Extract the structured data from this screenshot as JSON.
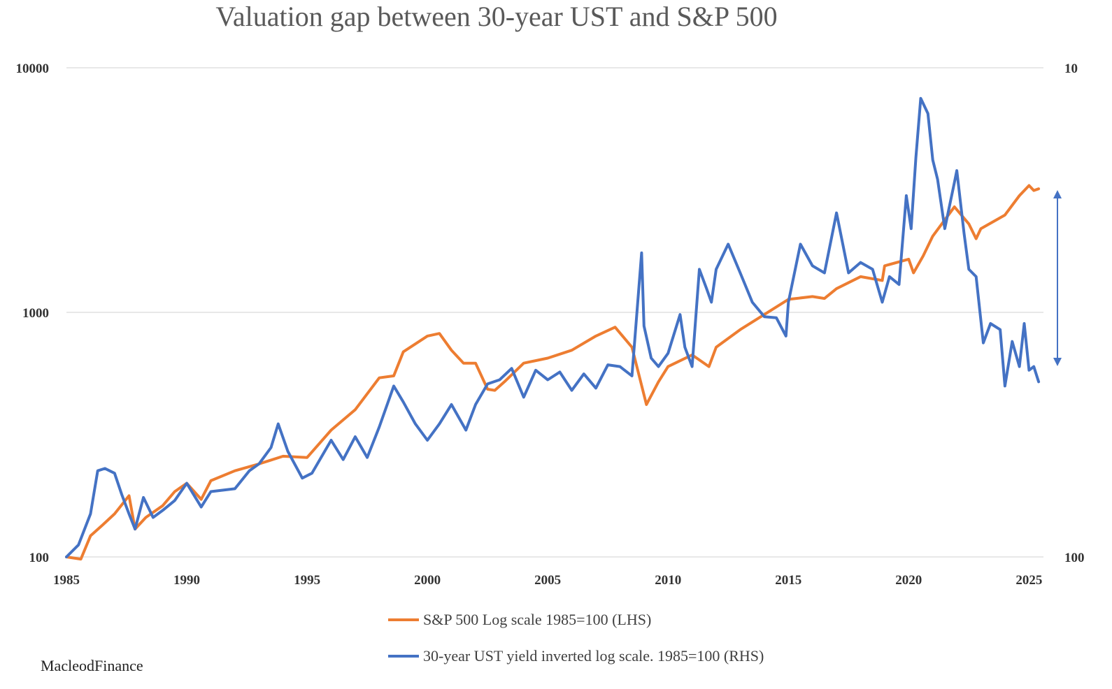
{
  "chart_data": {
    "type": "line",
    "title": "Valuation gap between 30-year UST and S&P 500",
    "x_ticks": [
      "1985",
      "1990",
      "1995",
      "2000",
      "2005",
      "2010",
      "2015",
      "2020",
      "2025"
    ],
    "xlim": [
      1985,
      2025.6
    ],
    "left_axis": {
      "scale": "log",
      "ylim": [
        100,
        10000
      ],
      "ticks": [
        "100",
        "1000",
        "10000"
      ]
    },
    "right_axis": {
      "scale": "log-inverted",
      "ylim": [
        100,
        10
      ],
      "ticks": [
        "100",
        "10"
      ]
    },
    "grid": "horizontal",
    "legend_position": "bottom",
    "series": [
      {
        "name": "S&P 500 Log scale 1985=100 (LHS)",
        "color": "#ED7D31",
        "axis": "left",
        "x": [
          1985,
          1985.6,
          1986,
          1986.5,
          1987,
          1987.6,
          1987.85,
          1988.3,
          1989,
          1989.5,
          1990,
          1990.6,
          1991,
          1992,
          1993,
          1994,
          1995,
          1996,
          1997,
          1998,
          1998.6,
          1999,
          2000,
          2000.5,
          2001,
          2001.5,
          2002,
          2002.5,
          2002.8,
          2003.2,
          2004,
          2005,
          2006,
          2007,
          2007.8,
          2008.5,
          2009.1,
          2009.6,
          2010,
          2011,
          2011.7,
          2012,
          2013,
          2014,
          2015,
          2016,
          2016.5,
          2017,
          2018,
          2018.9,
          2019,
          2020,
          2020.2,
          2020.6,
          2021,
          2021.9,
          2022.5,
          2022.8,
          2023,
          2024,
          2024.6,
          2025,
          2025.2,
          2025.4
        ],
        "values": [
          100,
          98,
          122,
          135,
          150,
          178,
          130,
          145,
          162,
          185,
          200,
          172,
          205,
          225,
          240,
          258,
          255,
          330,
          400,
          540,
          550,
          690,
          800,
          820,
          700,
          620,
          620,
          485,
          480,
          520,
          620,
          650,
          700,
          800,
          870,
          720,
          420,
          520,
          600,
          670,
          600,
          720,
          850,
          980,
          1130,
          1160,
          1140,
          1250,
          1400,
          1350,
          1550,
          1650,
          1450,
          1700,
          2050,
          2700,
          2300,
          2000,
          2200,
          2500,
          3000,
          3300,
          3150,
          3200
        ]
      },
      {
        "name": "30-year UST yield inverted log scale. 1985=100 (RHS)",
        "color": "#4472C4",
        "axis": "right",
        "x": [
          1985,
          1985.5,
          1986,
          1986.3,
          1986.6,
          1987,
          1987.3,
          1987.6,
          1987.85,
          1988.2,
          1988.6,
          1989,
          1989.5,
          1990,
          1990.6,
          1991,
          1992,
          1992.6,
          1993,
          1993.5,
          1993.8,
          1994.2,
          1994.8,
          1995.2,
          1996,
          1996.5,
          1997,
          1997.5,
          1998,
          1998.6,
          1999,
          1999.5,
          2000,
          2000.5,
          2001,
          2001.6,
          2002,
          2002.5,
          2003,
          2003.5,
          2004,
          2004.5,
          2005,
          2005.5,
          2006,
          2006.5,
          2007,
          2007.5,
          2008,
          2008.5,
          2008.9,
          2009,
          2009.3,
          2009.6,
          2010,
          2010.5,
          2010.7,
          2011,
          2011.3,
          2011.6,
          2011.8,
          2012,
          2012.5,
          2013,
          2013.5,
          2014,
          2014.5,
          2014.9,
          2015,
          2015.5,
          2016,
          2016.5,
          2017,
          2017.5,
          2018,
          2018.5,
          2018.9,
          2019.2,
          2019.6,
          2019.9,
          2020.1,
          2020.3,
          2020.5,
          2020.8,
          2021,
          2021.2,
          2021.5,
          2021.9,
          2022,
          2022.3,
          2022.5,
          2022.8,
          2023.1,
          2023.4,
          2023.8,
          2024,
          2024.3,
          2024.6,
          2024.8,
          2025,
          2025.2,
          2025.4
        ],
        "values": [
          100,
          112,
          150,
          225,
          230,
          220,
          180,
          150,
          130,
          175,
          145,
          155,
          170,
          200,
          160,
          185,
          190,
          225,
          240,
          280,
          350,
          270,
          210,
          220,
          300,
          250,
          310,
          255,
          340,
          500,
          430,
          350,
          300,
          350,
          420,
          330,
          420,
          510,
          530,
          590,
          450,
          580,
          530,
          570,
          480,
          560,
          490,
          610,
          600,
          550,
          1750,
          880,
          650,
          600,
          680,
          980,
          720,
          600,
          1500,
          1250,
          1100,
          1500,
          1900,
          1450,
          1100,
          960,
          950,
          800,
          1100,
          1900,
          1550,
          1450,
          2550,
          1450,
          1600,
          1500,
          1100,
          1400,
          1300,
          3000,
          2200,
          4300,
          7500,
          6500,
          4200,
          3500,
          2200,
          3400,
          3800,
          2100,
          1500,
          1400,
          750,
          900,
          850,
          500,
          760,
          600,
          900,
          580,
          600,
          520
        ]
      }
    ],
    "annotation": "double-headed arrow at right edge marking the gap"
  },
  "legend": {
    "items": [
      {
        "label": "S&P 500 Log scale 1985=100 (LHS)",
        "color": "#ED7D31"
      },
      {
        "label": "30-year UST yield inverted log scale. 1985=100 (RHS)",
        "color": "#4472C4"
      }
    ]
  },
  "watermark": "MacleodFinance",
  "colors": {
    "grid": "#D9D9D9",
    "arrow": "#4472C4"
  }
}
